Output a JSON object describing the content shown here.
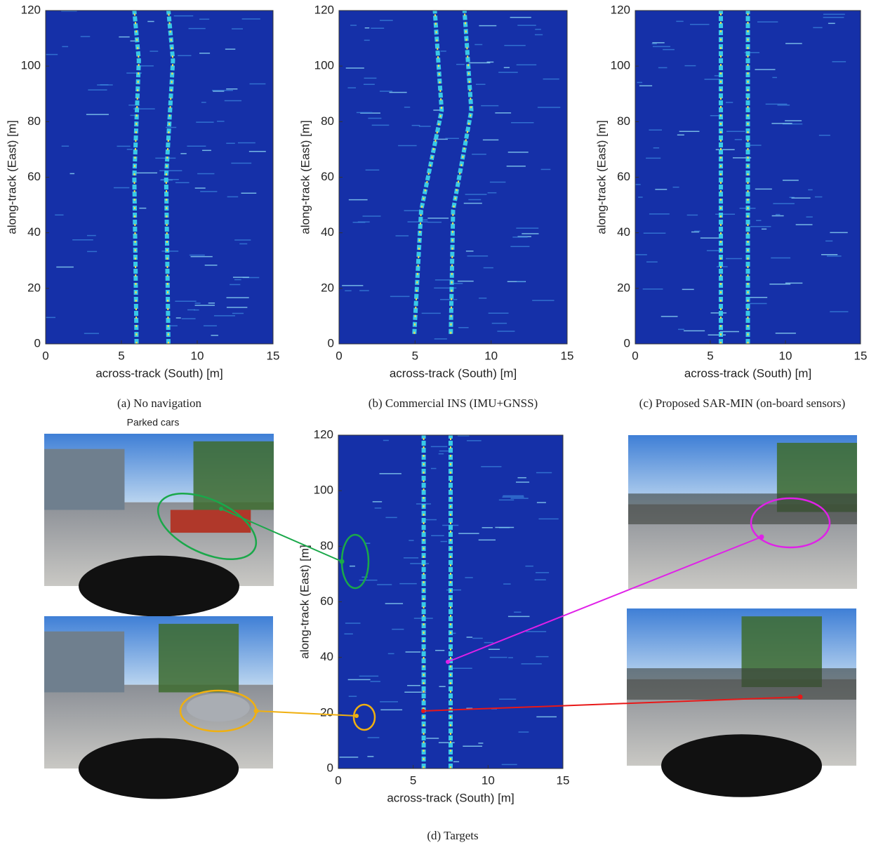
{
  "panels": [
    {
      "caption": "(a) No navigation",
      "xlabel": "across-track (South) [m]",
      "ylabel": "along-track (East) [m]",
      "xlim": [
        0,
        15
      ],
      "ylim": [
        0,
        120
      ],
      "xticks": [
        0,
        5,
        10,
        15
      ],
      "yticks": [
        0,
        20,
        40,
        60,
        80,
        100,
        120
      ]
    },
    {
      "caption": "(b) Commercial INS (IMU+GNSS)",
      "xlabel": "across-track (South) [m]",
      "ylabel": "along-track (East) [m]",
      "xlim": [
        0,
        15
      ],
      "ylim": [
        0,
        120
      ],
      "xticks": [
        0,
        5,
        10,
        15
      ],
      "yticks": [
        0,
        20,
        40,
        60,
        80,
        100,
        120
      ]
    },
    {
      "caption": "(c) Proposed SAR-MIN (on-board sensors)",
      "xlabel": "across-track (South) [m]",
      "ylabel": "along-track (East) [m]",
      "xlim": [
        0,
        15
      ],
      "ylim": [
        0,
        120
      ],
      "xticks": [
        0,
        5,
        10,
        15
      ],
      "yticks": [
        0,
        20,
        40,
        60,
        80,
        100,
        120
      ]
    },
    {
      "caption": "(d) Targets",
      "xlabel": "across-track (South) [m]",
      "ylabel": "along-track (East) [m]",
      "xlim": [
        0,
        15
      ],
      "ylim": [
        0,
        120
      ],
      "xticks": [
        0,
        5,
        10,
        15
      ],
      "yticks": [
        0,
        20,
        40,
        60,
        80,
        100,
        120
      ]
    }
  ],
  "photo_label": "Parked cars"
}
